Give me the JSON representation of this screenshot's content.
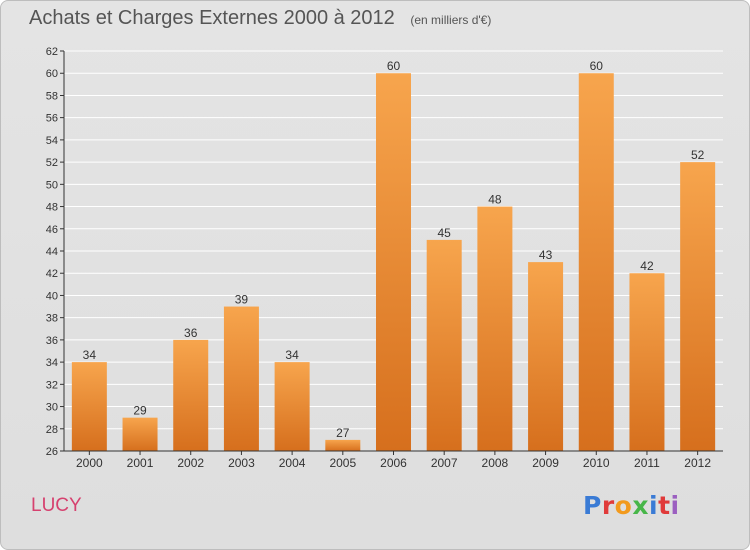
{
  "header": {
    "title": "Achats et Charges Externes 2000 à 2012",
    "subtitle": "(en milliers d'€)"
  },
  "footer": {
    "town": "LUCY",
    "logo_text": "Proxiti",
    "logo_letters": [
      "P",
      "r",
      "o",
      "x",
      "i",
      "t",
      "i"
    ],
    "logo_colors": [
      "#3a7bd5",
      "#e03a3a",
      "#f29a1d",
      "#47b649",
      "#3a7bd5",
      "#e03a3a",
      "#9b5fc0"
    ]
  },
  "colors": {
    "bar_light": "#f7a54d",
    "bar_dark": "#d66f1d",
    "grid": "#ffffff",
    "axis": "#333333",
    "title": "#555555",
    "town": "#d6416f"
  },
  "chart_data": {
    "type": "bar",
    "title": "Achats et Charges Externes 2000 à 2012",
    "subtitle": "(en milliers d'€)",
    "categories": [
      "2000",
      "2001",
      "2002",
      "2003",
      "2004",
      "2005",
      "2006",
      "2007",
      "2008",
      "2009",
      "2010",
      "2011",
      "2012"
    ],
    "values": [
      34,
      29,
      36,
      39,
      34,
      27,
      60,
      45,
      48,
      43,
      60,
      42,
      52
    ],
    "value_labels": [
      "34",
      "29",
      "36",
      "39",
      "34",
      "27",
      "60",
      "45",
      "48",
      "43",
      "60",
      "42",
      "52"
    ],
    "ylim": [
      26,
      62
    ],
    "y_ticks": [
      26,
      28,
      30,
      32,
      34,
      36,
      38,
      40,
      42,
      44,
      46,
      48,
      50,
      52,
      54,
      56,
      58,
      60,
      62
    ],
    "grid": true,
    "legend": "none"
  }
}
